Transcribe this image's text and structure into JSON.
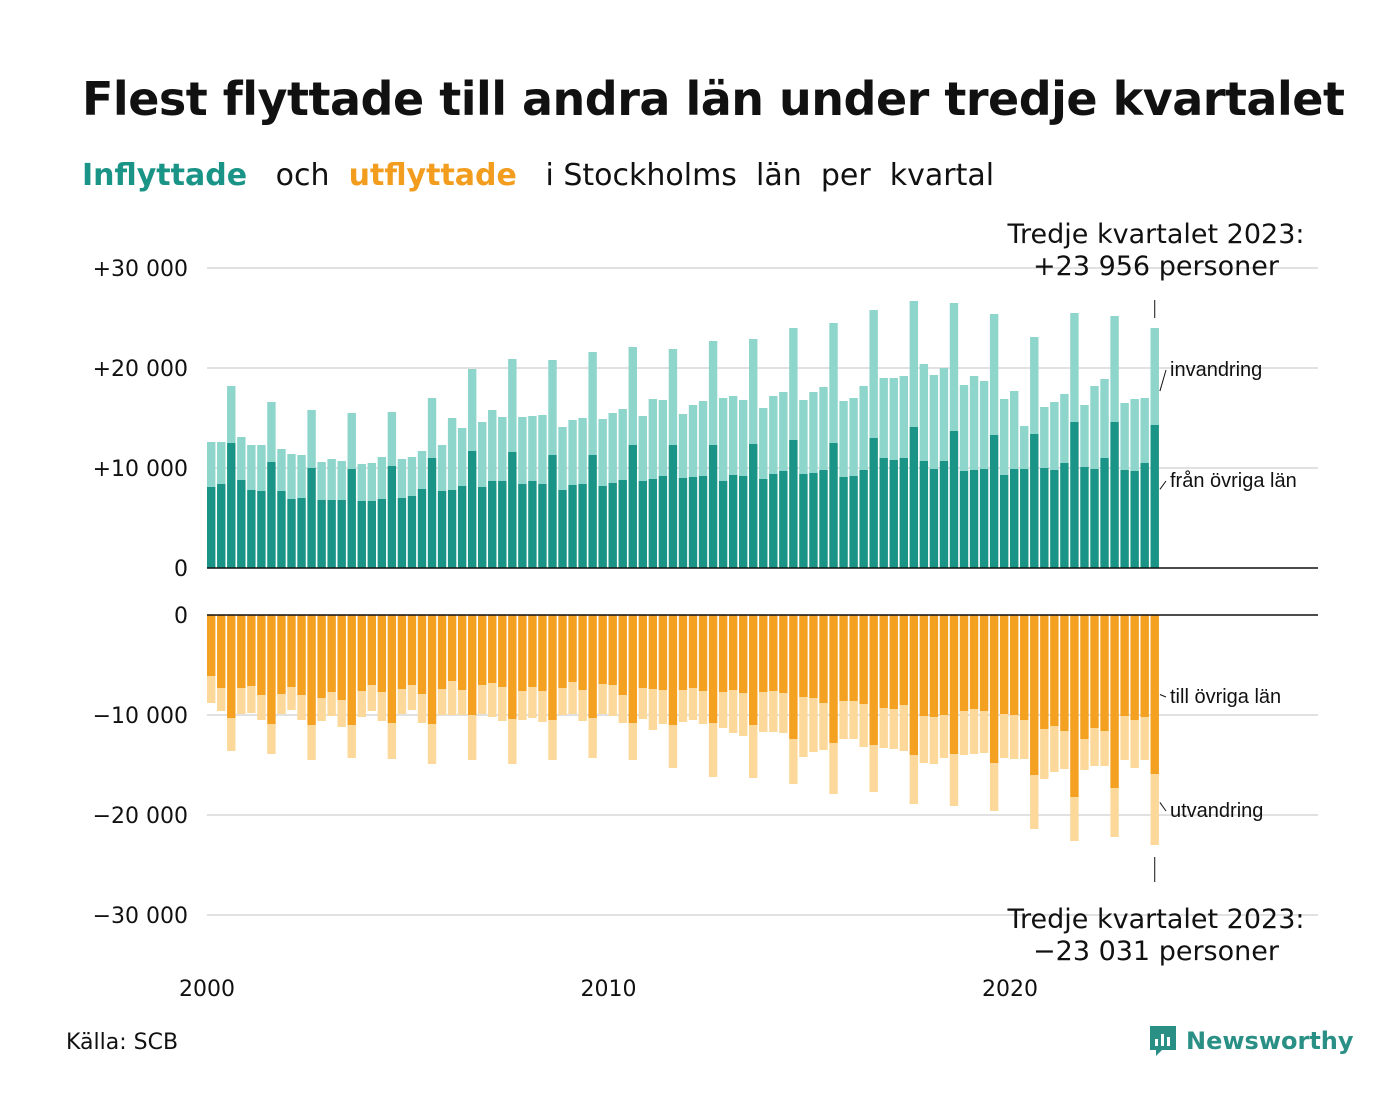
{
  "title": "Flest flyttade till andra län under tredje kvartalet",
  "subtitle": {
    "part_in": "Inflyttade",
    "part_and": "och",
    "part_out": "utflyttade",
    "part_rest": "i Stockholms  län  per  kvartal"
  },
  "source": "Källa: SCB",
  "logo": {
    "name": "Newsworthy",
    "icon": "newsworthy-logo-icon"
  },
  "colors": {
    "in_domestic": "#1a9486",
    "in_immigration": "#8ed5cc",
    "out_domestic": "#f4a020",
    "out_emigration": "#fcd99a",
    "gridline": "#e1e1e1",
    "axis": "#111111"
  },
  "chart_data": [
    {
      "type": "bar",
      "stacked": true,
      "title": "",
      "x_start": "2000 Q1",
      "x_ticks": [
        "2000",
        "2010",
        "2020"
      ],
      "y_ticks": [
        "+30 000",
        "+20 000",
        "+10 000",
        "0"
      ],
      "ylim": [
        0,
        30000
      ],
      "series": [
        {
          "name": "från övriga län",
          "values": [
            8100,
            8400,
            12500,
            8800,
            7800,
            7700,
            10600,
            7700,
            6900,
            7000,
            10000,
            6800,
            6800,
            6800,
            9900,
            6700,
            6700,
            6900,
            10200,
            7000,
            7200,
            7900,
            11000,
            7700,
            7800,
            8200,
            11700,
            8100,
            8700,
            8700,
            11600,
            8400,
            8700,
            8400,
            11300,
            7800,
            8300,
            8400,
            11300,
            8200,
            8500,
            8800,
            12300,
            8700,
            8900,
            9200,
            12300,
            9000,
            9100,
            9200,
            12300,
            8700,
            9300,
            9200,
            12400,
            8900,
            9400,
            9700,
            12800,
            9400,
            9500,
            9800,
            12500,
            9100,
            9200,
            9800,
            13000,
            11000,
            10800,
            11000,
            14100,
            10700,
            9900,
            10700,
            13700,
            9700,
            9800,
            9900,
            13300,
            9300,
            9900,
            9900,
            13400,
            10000,
            9800,
            10500,
            14600,
            10100,
            9900,
            11000,
            14600,
            9800,
            9700,
            10500,
            14300
          ]
        },
        {
          "name": "invandring",
          "values": [
            4500,
            4200,
            5700,
            4300,
            4500,
            4600,
            6000,
            4200,
            4500,
            4300,
            5800,
            3800,
            4100,
            3900,
            5600,
            3700,
            3800,
            4200,
            5400,
            3900,
            3900,
            3800,
            6000,
            4600,
            7200,
            5800,
            8200,
            6500,
            7100,
            6400,
            9300,
            6700,
            6500,
            6900,
            9500,
            6300,
            6500,
            6600,
            10300,
            6700,
            7000,
            7100,
            9800,
            6500,
            8000,
            7600,
            9600,
            6400,
            7200,
            7500,
            10400,
            8300,
            7900,
            7600,
            10500,
            7100,
            7800,
            7900,
            11200,
            7400,
            8100,
            8300,
            12000,
            7600,
            7800,
            8400,
            12800,
            8000,
            8200,
            8200,
            12600,
            9700,
            9400,
            9300,
            12800,
            8600,
            9400,
            8800,
            12100,
            7600,
            7800,
            4300,
            9700,
            6100,
            6800,
            6900,
            10900,
            6200,
            8300,
            7900,
            10600,
            6700,
            7200,
            6500,
            9700
          ]
        }
      ],
      "annotation": "Tredje kvartalet 2023:\n+23 956 personer",
      "total_last": 23956
    },
    {
      "type": "bar",
      "stacked": true,
      "title": "",
      "y_ticks": [
        "0",
        "−10 000",
        "−20 000",
        "−30 000"
      ],
      "ylim": [
        -30000,
        0
      ],
      "series": [
        {
          "name": "till övriga län",
          "values": [
            -6100,
            -7300,
            -10300,
            -7300,
            -7100,
            -8000,
            -10900,
            -7900,
            -7200,
            -8000,
            -11000,
            -8300,
            -7700,
            -8500,
            -11000,
            -7600,
            -7000,
            -7700,
            -10800,
            -7400,
            -7000,
            -7900,
            -10900,
            -7400,
            -6600,
            -7500,
            -10000,
            -7000,
            -6800,
            -7200,
            -10400,
            -7600,
            -7200,
            -7600,
            -10500,
            -7300,
            -6700,
            -7500,
            -10300,
            -6900,
            -7000,
            -8000,
            -10800,
            -7300,
            -7400,
            -7500,
            -11000,
            -7500,
            -7300,
            -7600,
            -10800,
            -7700,
            -7500,
            -7800,
            -11000,
            -7700,
            -7600,
            -7800,
            -12400,
            -8200,
            -8300,
            -8800,
            -12800,
            -8600,
            -8600,
            -8900,
            -13000,
            -9300,
            -9400,
            -9000,
            -14000,
            -10100,
            -10200,
            -10000,
            -13900,
            -9600,
            -9400,
            -9600,
            -14800,
            -9900,
            -10000,
            -10500,
            -16000,
            -11400,
            -11100,
            -11600,
            -18200,
            -12400,
            -11300,
            -11600,
            -17300,
            -10100,
            -10500,
            -10200,
            -15900
          ]
        },
        {
          "name": "utvandring",
          "values": [
            -2700,
            -2300,
            -3300,
            -2600,
            -2700,
            -2500,
            -3000,
            -2000,
            -2300,
            -2500,
            -3500,
            -2300,
            -2400,
            -2700,
            -3300,
            -2600,
            -2600,
            -2900,
            -3600,
            -2500,
            -2500,
            -2900,
            -4000,
            -2600,
            -3400,
            -2500,
            -4500,
            -2900,
            -3400,
            -3400,
            -4500,
            -2900,
            -3100,
            -3100,
            -4000,
            -2700,
            -3200,
            -3100,
            -4000,
            -3000,
            -3100,
            -2800,
            -3700,
            -3100,
            -4100,
            -3400,
            -4300,
            -3200,
            -3200,
            -3300,
            -5400,
            -3600,
            -4300,
            -4300,
            -5300,
            -4000,
            -4100,
            -4000,
            -4500,
            -6000,
            -5400,
            -4700,
            -5100,
            -3800,
            -3800,
            -4300,
            -4700,
            -4000,
            -4000,
            -4600,
            -4900,
            -4700,
            -4700,
            -4300,
            -5200,
            -4400,
            -4500,
            -4200,
            -4800,
            -4400,
            -4400,
            -3900,
            -5400,
            -5000,
            -4600,
            -3800,
            -4400,
            -3100,
            -3800,
            -3500,
            -4900,
            -4400,
            -4800,
            -4300,
            -7100
          ]
        }
      ],
      "annotation": "Tredje kvartalet 2023:\n−23 031 personer",
      "total_last": -23031
    }
  ]
}
